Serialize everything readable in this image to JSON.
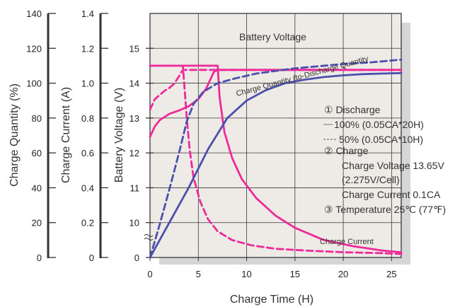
{
  "chart_data": {
    "type": "line",
    "title": "",
    "xlabel": "Charge Time (H)",
    "x_ticks": [
      "0",
      "5",
      "10",
      "15",
      "20",
      "25"
    ],
    "xlim": [
      0,
      26
    ],
    "axes": {
      "charge_quantity": {
        "label": "Charge Quantity (%)",
        "ticks": [
          "0",
          "20",
          "40",
          "60",
          "80",
          "100",
          "120",
          "140"
        ],
        "range": [
          0,
          140
        ]
      },
      "charge_current": {
        "label": "Charge Current (A)",
        "ticks": [
          "0",
          "0.2",
          "0.4",
          "0.6",
          "0.8",
          "1.0",
          "1.2",
          "1.4"
        ],
        "range": [
          0,
          1.4
        ]
      },
      "battery_voltage": {
        "label": "Battery Voltage (V)",
        "ticks": [
          "0",
          "10",
          "11",
          "12",
          "13",
          "14",
          "15"
        ],
        "range": [
          9,
          15
        ],
        "break": true
      }
    },
    "annotations": {
      "voltage": "Battery Voltage",
      "quantity": "Charge Quantity (to-Discharge Quantity",
      "current": "Charge Current"
    },
    "legend": {
      "l1": "① Discharge",
      "l2": "100% (0.05CA*20H)",
      "l3": "50% (0.05CA*10H)",
      "l4": "② Charge",
      "l5": "Charge Voltage 13.65V",
      "l6": "(2.275V/Cell)",
      "l7": "Charge Current 0.1CA",
      "l8": "③ Temperature 25℃ (77℉)"
    },
    "colors": {
      "voltage": "#ee2a9a",
      "current": "#ee2a9a",
      "quantity": "#4b4fae",
      "plot_bg": "#eeebe6",
      "shadow": "#d6d6d6",
      "grid": "#3a3a3a"
    },
    "series": [
      {
        "axis": "battery_voltage",
        "dash": false,
        "x": [
          0,
          0.5,
          1,
          2,
          3,
          4,
          5,
          5.8,
          6.2,
          6.6,
          7,
          26
        ],
        "y": [
          12.05,
          12.3,
          12.45,
          12.6,
          12.68,
          12.78,
          12.95,
          13.2,
          13.4,
          13.6,
          13.65,
          13.65
        ]
      },
      {
        "axis": "battery_voltage",
        "dash": true,
        "x": [
          0,
          0.5,
          1,
          1.5,
          2,
          2.5,
          3,
          3.3,
          3.6,
          26
        ],
        "y": [
          12.7,
          12.95,
          13.05,
          13.15,
          13.22,
          13.32,
          13.5,
          13.62,
          13.65,
          13.65
        ]
      },
      {
        "axis": "charge_current",
        "dash": false,
        "x": [
          0,
          7,
          7.2,
          7.7,
          8.5,
          9.5,
          11,
          13,
          15,
          18,
          21,
          24,
          26
        ],
        "y": [
          1.1,
          1.1,
          0.92,
          0.72,
          0.57,
          0.45,
          0.34,
          0.24,
          0.17,
          0.1,
          0.065,
          0.04,
          0.03
        ]
      },
      {
        "axis": "charge_current",
        "dash": true,
        "x": [
          0,
          3.4,
          3.6,
          3.8,
          4.1,
          4.5,
          5.2,
          6,
          7,
          8.5,
          10.5,
          13,
          16,
          20,
          24,
          26
        ],
        "y": [
          1.1,
          1.1,
          0.95,
          0.8,
          0.62,
          0.46,
          0.32,
          0.22,
          0.15,
          0.1,
          0.07,
          0.05,
          0.04,
          0.03,
          0.025,
          0.02
        ]
      },
      {
        "axis": "charge_quantity",
        "dash": false,
        "x": [
          0,
          2,
          4,
          6,
          8,
          10,
          12,
          14,
          16,
          18,
          20,
          22,
          24,
          26
        ],
        "y": [
          0,
          20,
          40,
          62,
          80,
          90,
          96,
          100,
          102,
          103.5,
          104.5,
          105.2,
          105.5,
          105.8
        ]
      },
      {
        "axis": "charge_quantity",
        "dash": true,
        "x": [
          0,
          1,
          2,
          3,
          3.8,
          4.5,
          5.5,
          7,
          9,
          11,
          13,
          15,
          17,
          20,
          23,
          26
        ],
        "y": [
          0,
          19,
          39,
          60,
          78,
          88,
          95,
          100,
          103,
          105.5,
          107,
          108.5,
          109.5,
          111,
          112,
          113.5
        ]
      }
    ]
  }
}
